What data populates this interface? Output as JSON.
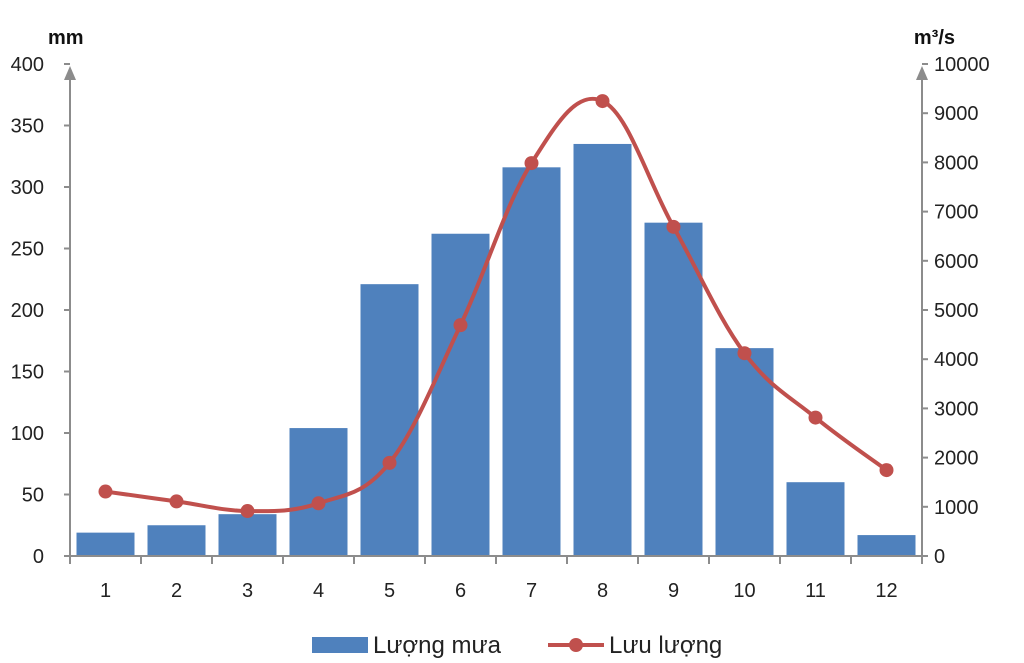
{
  "chart_data": {
    "type": "bar+line",
    "categories": [
      "1",
      "2",
      "3",
      "4",
      "5",
      "6",
      "7",
      "8",
      "9",
      "10",
      "11",
      "12"
    ],
    "series": [
      {
        "name": "Lượng mưa",
        "type": "bar",
        "axis": "left",
        "color": "#4f81bd",
        "values": [
          19,
          25,
          34,
          104,
          221,
          262,
          316,
          335,
          271,
          169,
          60,
          17
        ]
      },
      {
        "name": "Lưu lượng",
        "type": "line",
        "axis": "right",
        "color": "#c0504d",
        "values": [
          1310,
          1110,
          914,
          1071,
          1893,
          4692,
          7986,
          9246,
          6690,
          4122,
          2813,
          1746
        ]
      }
    ],
    "y_left": {
      "unit": "mm",
      "ylim": [
        0,
        400
      ],
      "ticks": [
        "0",
        "50",
        "100",
        "150",
        "200",
        "250",
        "300",
        "350",
        "400"
      ]
    },
    "y_right": {
      "unit": "m³/s",
      "ylim": [
        0,
        10000
      ],
      "ticks": [
        "0",
        "1000",
        "2000",
        "3000",
        "4000",
        "5000",
        "6000",
        "7000",
        "8000",
        "9000",
        "10000"
      ]
    },
    "legend": {
      "position": "bottom",
      "items": [
        "Lượng mưa",
        "Lưu lượng"
      ]
    },
    "grid": false
  }
}
